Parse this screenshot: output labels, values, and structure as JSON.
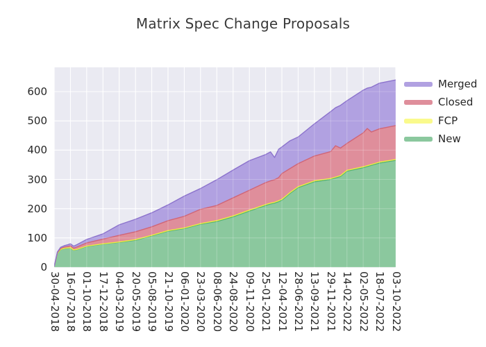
{
  "title": "Matrix Spec Change Proposals",
  "legend": {
    "items": [
      {
        "label": "Merged",
        "color": "#b1a1e1"
      },
      {
        "label": "Closed",
        "color": "#df8e9b"
      },
      {
        "label": "FCP",
        "color": "#fafa8c"
      },
      {
        "label": "New",
        "color": "#8bc89e"
      }
    ]
  },
  "chart_data": {
    "type": "area",
    "stacked": true,
    "title": "Matrix Spec Change Proposals",
    "xlabel": "",
    "ylabel": "",
    "grid": true,
    "plot_bg": "#eaeaf2",
    "grid_color": "#ffffff",
    "legend_position": "right",
    "y_ticks": [
      0,
      100,
      200,
      300,
      400,
      500,
      600
    ],
    "ylim": [
      0,
      683
    ],
    "x_tick_labels": [
      "30-04-2018",
      "16-07-2018",
      "01-10-2018",
      "17-12-2018",
      "04-03-2019",
      "20-05-2019",
      "05-08-2019",
      "21-10-2019",
      "06-01-2020",
      "23-03-2020",
      "08-06-2020",
      "24-08-2020",
      "09-11-2020",
      "25-01-2021",
      "12-04-2021",
      "28-06-2021",
      "13-09-2021",
      "29-11-2021",
      "14-02-2022",
      "02-05-2022",
      "18-07-2022",
      "03-10-2022"
    ],
    "x": {
      "dates": [
        "30-04-2018",
        "14-05-2018",
        "28-05-2018",
        "18-06-2018",
        "02-07-2018",
        "16-07-2018",
        "30-07-2018",
        "13-08-2018",
        "01-10-2018",
        "17-12-2018",
        "04-03-2019",
        "20-05-2019",
        "05-08-2019",
        "21-10-2019",
        "06-01-2020",
        "23-03-2020",
        "08-06-2020",
        "24-08-2020",
        "09-11-2020",
        "25-01-2021",
        "15-02-2021",
        "08-03-2021",
        "22-03-2021",
        "12-04-2021",
        "17-05-2021",
        "28-06-2021",
        "13-09-2021",
        "29-11-2021",
        "20-12-2021",
        "10-01-2022",
        "14-02-2022",
        "02-05-2022",
        "23-05-2022",
        "13-06-2022",
        "18-07-2022",
        "03-10-2022"
      ],
      "tick_pos": [
        0,
        0.2,
        0.4,
        0.65,
        0.85,
        1,
        1.2,
        1.4,
        2,
        3,
        4,
        5,
        6,
        7,
        8,
        9,
        10,
        11,
        12,
        13,
        13.3,
        13.55,
        13.8,
        14,
        14.5,
        15,
        16,
        17,
        17.3,
        17.6,
        18,
        19,
        19.25,
        19.5,
        20,
        21
      ]
    },
    "series": [
      {
        "name": "New",
        "fill": "#8bc89e",
        "line": "#54b274",
        "values": [
          2,
          48,
          60,
          64,
          65,
          66,
          58,
          60,
          71,
          79,
          85,
          92,
          107,
          123,
          132,
          147,
          156,
          172,
          192,
          211,
          216,
          219,
          224,
          229,
          252,
          272,
          292,
          300,
          305,
          310,
          328,
          340,
          344,
          348,
          356,
          365
        ]
      },
      {
        "name": "FCP",
        "fill": "#fafa8c",
        "line": "#eeec40",
        "values": [
          0,
          0,
          1,
          1,
          1,
          1,
          1,
          1,
          1,
          1,
          1,
          2,
          2,
          2,
          2,
          2,
          3,
          3,
          3,
          3,
          3,
          3,
          3,
          3,
          3,
          3,
          3,
          3,
          3,
          3,
          3,
          3,
          3,
          3,
          3,
          3
        ]
      },
      {
        "name": "Closed",
        "fill": "#df8e9b",
        "line": "#d06577",
        "values": [
          0,
          2,
          3,
          4,
          5,
          6,
          6,
          8,
          11,
          16,
          23,
          27,
          29,
          34,
          40,
          49,
          52,
          62,
          68,
          75,
          76,
          77,
          79,
          88,
          82,
          79,
          85,
          92,
          107,
          94,
          92,
          116,
          127,
          111,
          114,
          116
        ]
      },
      {
        "name": "Merged",
        "fill": "#b1a1e1",
        "line": "#8b72cc",
        "values": [
          0,
          2,
          4,
          5,
          6,
          7,
          7,
          8,
          12,
          18,
          36,
          43,
          48,
          54,
          69,
          71,
          88,
          95,
          101,
          96,
          99,
          76,
          97,
          91,
          95,
          91,
          110,
          137,
          130,
          146,
          146,
          146,
          138,
          153,
          156,
          156
        ]
      }
    ]
  }
}
